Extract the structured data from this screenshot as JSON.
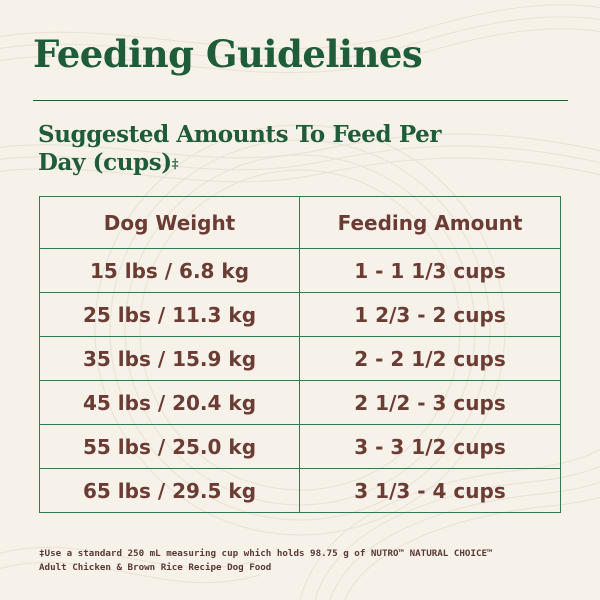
{
  "colors": {
    "background": "#f6f2ea",
    "heading_green": "#1e5c3a",
    "table_border_green": "#2f7a52",
    "text_brown": "#6a3c33"
  },
  "header": {
    "title": "Feeding Guidelines"
  },
  "subtitle": {
    "text": "Suggested Amounts To Feed Per Day (cups)",
    "mark": "‡"
  },
  "table": {
    "headers": [
      "Dog Weight",
      "Feeding Amount"
    ],
    "rows": [
      [
        "15 lbs / 6.8 kg",
        "1 - 1 1/3 cups"
      ],
      [
        "25 lbs / 11.3 kg",
        "1 2/3 - 2 cups"
      ],
      [
        "35 lbs / 15.9 kg",
        "2 - 2 1/2 cups"
      ],
      [
        "45 lbs / 20.4 kg",
        "2 1/2 - 3 cups"
      ],
      [
        "55 lbs / 25.0 kg",
        "3 - 3 1/2 cups"
      ],
      [
        "65 lbs / 29.5 kg",
        "3 1/3 - 4 cups"
      ]
    ]
  },
  "footnote": {
    "line1": "‡Use a standard 250 mL measuring cup which holds 98.75 g of NUTRO™ NATURAL CHOICE™",
    "line2": "Adult Chicken & Brown Rice Recipe Dog Food"
  }
}
